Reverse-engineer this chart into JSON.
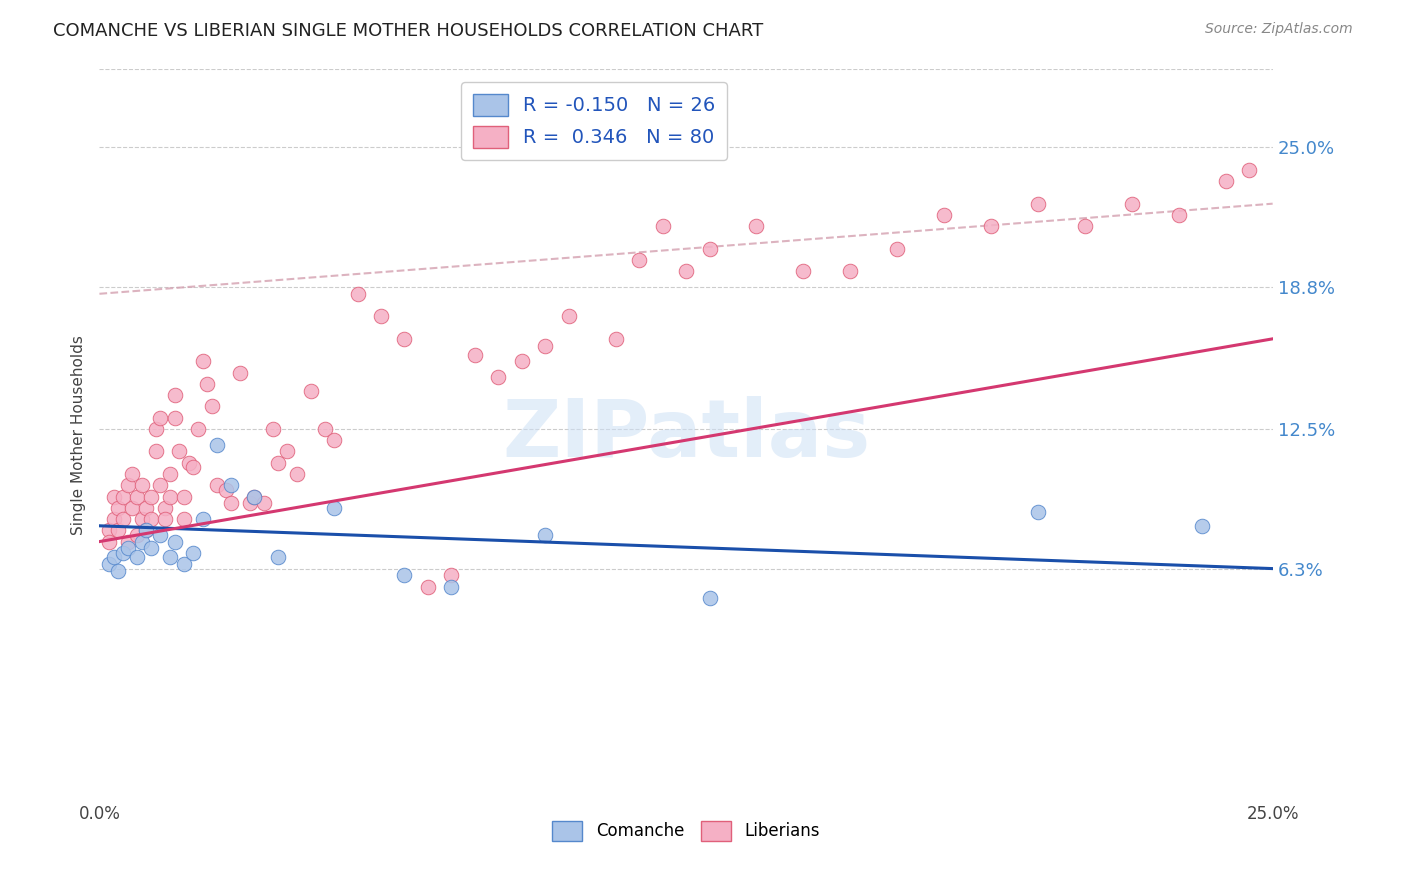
{
  "title": "COMANCHE VS LIBERIAN SINGLE MOTHER HOUSEHOLDS CORRELATION CHART",
  "source": "Source: ZipAtlas.com",
  "ylabel": "Single Mother Households",
  "watermark": "ZIPatlas",
  "comanche_color": "#aac4e8",
  "comanche_edge": "#5588cc",
  "liberian_color": "#f5b0c5",
  "liberian_edge": "#e0607a",
  "trend_comanche_color": "#1a4faa",
  "trend_liberian_color": "#d43870",
  "trend_dashed_color": "#d4a0b0",
  "legend_line1": "R = -0.150   N = 26",
  "legend_line2": "R =  0.346   N = 80",
  "ytick_labels": [
    "6.3%",
    "12.5%",
    "18.8%",
    "25.0%"
  ],
  "ytick_vals": [
    0.063,
    0.125,
    0.188,
    0.25
  ],
  "xlim": [
    0.0,
    0.25
  ],
  "ylim": [
    -0.04,
    0.285
  ],
  "background_color": "#ffffff",
  "grid_color": "#cccccc",
  "comanche_trend_x": [
    0.0,
    0.25
  ],
  "comanche_trend_y": [
    0.082,
    0.063
  ],
  "liberian_trend_x": [
    0.0,
    0.25
  ],
  "liberian_trend_y": [
    0.075,
    0.165
  ],
  "dashed_trend_x": [
    0.0,
    0.25
  ],
  "dashed_trend_y": [
    0.185,
    0.225
  ],
  "comanche_x": [
    0.002,
    0.003,
    0.004,
    0.005,
    0.006,
    0.008,
    0.009,
    0.01,
    0.011,
    0.013,
    0.015,
    0.016,
    0.018,
    0.02,
    0.022,
    0.025,
    0.028,
    0.033,
    0.038,
    0.05,
    0.065,
    0.075,
    0.095,
    0.13,
    0.2,
    0.235
  ],
  "comanche_y": [
    0.065,
    0.068,
    0.062,
    0.07,
    0.072,
    0.068,
    0.075,
    0.08,
    0.072,
    0.078,
    0.068,
    0.075,
    0.065,
    0.07,
    0.085,
    0.118,
    0.1,
    0.095,
    0.068,
    0.09,
    0.06,
    0.055,
    0.078,
    0.05,
    0.088,
    0.082
  ],
  "liberian_x": [
    0.002,
    0.002,
    0.003,
    0.003,
    0.004,
    0.004,
    0.005,
    0.005,
    0.006,
    0.006,
    0.007,
    0.007,
    0.008,
    0.008,
    0.009,
    0.009,
    0.01,
    0.01,
    0.011,
    0.011,
    0.012,
    0.012,
    0.013,
    0.013,
    0.014,
    0.014,
    0.015,
    0.015,
    0.016,
    0.016,
    0.017,
    0.018,
    0.018,
    0.019,
    0.02,
    0.021,
    0.022,
    0.023,
    0.024,
    0.025,
    0.027,
    0.028,
    0.03,
    0.032,
    0.033,
    0.035,
    0.037,
    0.038,
    0.04,
    0.042,
    0.045,
    0.048,
    0.05,
    0.055,
    0.06,
    0.065,
    0.07,
    0.075,
    0.08,
    0.085,
    0.09,
    0.095,
    0.1,
    0.11,
    0.115,
    0.12,
    0.125,
    0.13,
    0.14,
    0.15,
    0.16,
    0.17,
    0.18,
    0.19,
    0.2,
    0.21,
    0.22,
    0.23,
    0.24,
    0.245
  ],
  "liberian_y": [
    0.08,
    0.075,
    0.095,
    0.085,
    0.09,
    0.08,
    0.095,
    0.085,
    0.1,
    0.075,
    0.105,
    0.09,
    0.095,
    0.078,
    0.085,
    0.1,
    0.09,
    0.08,
    0.095,
    0.085,
    0.125,
    0.115,
    0.13,
    0.1,
    0.09,
    0.085,
    0.105,
    0.095,
    0.14,
    0.13,
    0.115,
    0.095,
    0.085,
    0.11,
    0.108,
    0.125,
    0.155,
    0.145,
    0.135,
    0.1,
    0.098,
    0.092,
    0.15,
    0.092,
    0.095,
    0.092,
    0.125,
    0.11,
    0.115,
    0.105,
    0.142,
    0.125,
    0.12,
    0.185,
    0.175,
    0.165,
    0.055,
    0.06,
    0.158,
    0.148,
    0.155,
    0.162,
    0.175,
    0.165,
    0.2,
    0.215,
    0.195,
    0.205,
    0.215,
    0.195,
    0.195,
    0.205,
    0.22,
    0.215,
    0.225,
    0.215,
    0.225,
    0.22,
    0.235,
    0.24
  ]
}
